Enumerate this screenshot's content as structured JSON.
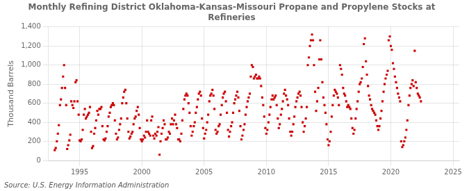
{
  "chart_data": {
    "type": "scatter",
    "title": "Monthly Refining District Oklahoma-Kansas-Missouri Propane and Propylene Stocks at\nRefineries",
    "ylabel": "Thousand Barrels",
    "source": "Source: U.S. Energy Information Administration",
    "color": "#cc0000",
    "marker": "square",
    "grid": true,
    "xlim": [
      1992.5,
      2025.5
    ],
    "xticks": [
      1995,
      2000,
      2005,
      2010,
      2015,
      2020,
      2025
    ],
    "ylim": [
      0,
      1400
    ],
    "yticks": [
      0,
      200,
      400,
      600,
      800,
      {
        "value": 1000,
        "label": "1,000"
      },
      {
        "value": 1200,
        "label": "1,200"
      },
      {
        "value": 1400,
        "label": "1,400"
      }
    ],
    "x": [
      1993.0,
      1993.08,
      1993.17,
      1993.25,
      1993.33,
      1993.42,
      1993.5,
      1993.58,
      1993.67,
      1993.75,
      1993.83,
      1993.92,
      1994.0,
      1994.08,
      1994.17,
      1994.25,
      1994.33,
      1994.42,
      1994.5,
      1994.58,
      1994.67,
      1994.75,
      1994.83,
      1994.92,
      1995.0,
      1995.08,
      1995.17,
      1995.25,
      1995.33,
      1995.42,
      1995.5,
      1995.58,
      1995.67,
      1995.75,
      1995.83,
      1995.92,
      1996.0,
      1996.08,
      1996.17,
      1996.25,
      1996.33,
      1996.42,
      1996.5,
      1996.58,
      1996.67,
      1996.75,
      1996.83,
      1996.92,
      1997.0,
      1997.08,
      1997.17,
      1997.25,
      1997.33,
      1997.42,
      1997.5,
      1997.58,
      1997.67,
      1997.75,
      1997.83,
      1997.92,
      1998.0,
      1998.08,
      1998.17,
      1998.25,
      1998.33,
      1998.42,
      1998.5,
      1998.58,
      1998.67,
      1998.75,
      1998.83,
      1998.92,
      1999.0,
      1999.08,
      1999.17,
      1999.25,
      1999.33,
      1999.42,
      1999.5,
      1999.58,
      1999.67,
      1999.75,
      1999.83,
      1999.92,
      2000.0,
      2000.08,
      2000.17,
      2000.25,
      2000.33,
      2000.42,
      2000.5,
      2000.58,
      2000.67,
      2000.75,
      2000.83,
      2000.92,
      2001.0,
      2001.08,
      2001.17,
      2001.25,
      2001.33,
      2001.42,
      2001.5,
      2001.58,
      2001.67,
      2001.75,
      2001.83,
      2001.92,
      2002.0,
      2002.08,
      2002.17,
      2002.25,
      2002.33,
      2002.42,
      2002.5,
      2002.58,
      2002.67,
      2002.75,
      2002.83,
      2002.92,
      2003.0,
      2003.08,
      2003.17,
      2003.25,
      2003.33,
      2003.42,
      2003.5,
      2003.58,
      2003.67,
      2003.75,
      2003.83,
      2003.92,
      2004.0,
      2004.08,
      2004.17,
      2004.25,
      2004.33,
      2004.42,
      2004.5,
      2004.58,
      2004.67,
      2004.75,
      2004.83,
      2004.92,
      2005.0,
      2005.08,
      2005.17,
      2005.25,
      2005.33,
      2005.42,
      2005.5,
      2005.58,
      2005.67,
      2005.75,
      2005.83,
      2005.92,
      2006.0,
      2006.08,
      2006.17,
      2006.25,
      2006.33,
      2006.42,
      2006.5,
      2006.58,
      2006.67,
      2006.75,
      2006.83,
      2006.92,
      2007.0,
      2007.08,
      2007.17,
      2007.25,
      2007.33,
      2007.42,
      2007.5,
      2007.58,
      2007.67,
      2007.75,
      2007.83,
      2007.92,
      2008.0,
      2008.08,
      2008.17,
      2008.25,
      2008.33,
      2008.42,
      2008.5,
      2008.58,
      2008.67,
      2008.75,
      2008.83,
      2008.92,
      2009.0,
      2009.08,
      2009.17,
      2009.25,
      2009.33,
      2009.42,
      2009.5,
      2009.58,
      2009.67,
      2009.75,
      2009.83,
      2009.92,
      2010.0,
      2010.08,
      2010.17,
      2010.25,
      2010.33,
      2010.42,
      2010.5,
      2010.58,
      2010.67,
      2010.75,
      2010.83,
      2010.92,
      2011.0,
      2011.08,
      2011.17,
      2011.25,
      2011.33,
      2011.42,
      2011.5,
      2011.58,
      2011.67,
      2011.75,
      2011.83,
      2011.92,
      2012.0,
      2012.08,
      2012.17,
      2012.25,
      2012.33,
      2012.42,
      2012.5,
      2012.58,
      2012.67,
      2012.75,
      2012.83,
      2012.92,
      2013.0,
      2013.08,
      2013.17,
      2013.25,
      2013.33,
      2013.42,
      2013.5,
      2013.58,
      2013.67,
      2013.75,
      2013.83,
      2013.92,
      2014.0,
      2014.08,
      2014.17,
      2014.25,
      2014.33,
      2014.42,
      2014.5,
      2014.58,
      2014.67,
      2014.75,
      2014.83,
      2014.92,
      2015.0,
      2015.08,
      2015.17,
      2015.25,
      2015.33,
      2015.42,
      2015.5,
      2015.58,
      2015.67,
      2015.75,
      2015.83,
      2015.92,
      2016.0,
      2016.08,
      2016.17,
      2016.25,
      2016.33,
      2016.42,
      2016.5,
      2016.58,
      2016.67,
      2016.75,
      2016.83,
      2016.92,
      2017.0,
      2017.08,
      2017.17,
      2017.25,
      2017.33,
      2017.42,
      2017.5,
      2017.58,
      2017.67,
      2017.75,
      2017.83,
      2017.92,
      2018.0,
      2018.08,
      2018.17,
      2018.25,
      2018.33,
      2018.42,
      2018.5,
      2018.58,
      2018.67,
      2018.75,
      2018.83,
      2018.92,
      2019.0,
      2019.08,
      2019.17,
      2019.25,
      2019.33,
      2019.42,
      2019.5,
      2019.58,
      2019.67,
      2019.75,
      2019.83,
      2019.92,
      2020.0,
      2020.08,
      2020.17,
      2020.25,
      2020.33,
      2020.42,
      2020.5,
      2020.58,
      2020.67,
      2020.75,
      2020.83,
      2020.92,
      2021.0,
      2021.08,
      2021.17,
      2021.25,
      2021.33,
      2021.42,
      2021.5,
      2021.58,
      2021.67,
      2021.75,
      2021.83,
      2021.92,
      2022.0,
      2022.08,
      2022.17,
      2022.25,
      2022.33,
      2022.42
    ],
    "values": [
      108,
      130,
      200,
      280,
      370,
      580,
      640,
      760,
      880,
      1000,
      760,
      580,
      120,
      160,
      210,
      270,
      620,
      580,
      550,
      620,
      820,
      840,
      620,
      480,
      210,
      200,
      220,
      320,
      480,
      540,
      440,
      460,
      480,
      500,
      560,
      300,
      130,
      150,
      280,
      340,
      420,
      520,
      480,
      540,
      540,
      560,
      360,
      220,
      210,
      230,
      300,
      360,
      460,
      500,
      560,
      580,
      600,
      580,
      420,
      280,
      220,
      240,
      320,
      380,
      440,
      600,
      660,
      720,
      740,
      600,
      440,
      300,
      230,
      250,
      280,
      300,
      380,
      440,
      460,
      520,
      560,
      480,
      340,
      220,
      200,
      220,
      260,
      240,
      300,
      420,
      300,
      280,
      260,
      420,
      460,
      260,
      230,
      280,
      260,
      300,
      350,
      60,
      200,
      280,
      340,
      420,
      380,
      220,
      220,
      240,
      300,
      280,
      380,
      440,
      380,
      420,
      480,
      380,
      340,
      220,
      220,
      200,
      280,
      420,
      540,
      640,
      680,
      700,
      680,
      600,
      500,
      360,
      260,
      300,
      360,
      400,
      500,
      560,
      640,
      700,
      720,
      680,
      440,
      340,
      230,
      280,
      320,
      400,
      480,
      620,
      680,
      700,
      740,
      680,
      540,
      320,
      280,
      300,
      360,
      380,
      480,
      580,
      660,
      700,
      720,
      620,
      500,
      320,
      250,
      300,
      360,
      400,
      500,
      600,
      640,
      680,
      720,
      660,
      520,
      360,
      220,
      260,
      320,
      380,
      480,
      560,
      620,
      660,
      700,
      880,
      1000,
      980,
      860,
      880,
      900,
      860,
      860,
      880,
      860,
      780,
      660,
      580,
      460,
      340,
      280,
      320,
      400,
      480,
      560,
      640,
      680,
      640,
      660,
      680,
      580,
      440,
      340,
      380,
      480,
      540,
      620,
      700,
      740,
      680,
      640,
      580,
      440,
      300,
      260,
      300,
      380,
      460,
      560,
      620,
      660,
      700,
      720,
      680,
      560,
      400,
      300,
      360,
      440,
      560,
      1000,
      1080,
      1200,
      1260,
      1320,
      1260,
      1000,
      720,
      520,
      620,
      760,
      1060,
      1260,
      1060,
      820,
      660,
      580,
      500,
      380,
      220,
      160,
      200,
      300,
      460,
      580,
      680,
      740,
      720,
      700,
      660,
      580,
      1000,
      960,
      900,
      760,
      700,
      680,
      620,
      560,
      580,
      560,
      540,
      440,
      340,
      280,
      320,
      440,
      540,
      620,
      720,
      800,
      820,
      860,
      980,
      1220,
      1280,
      1040,
      900,
      780,
      680,
      640,
      580,
      540,
      520,
      500,
      480,
      420,
      360,
      320,
      360,
      440,
      520,
      620,
      720,
      800,
      860,
      900,
      940,
      1260,
      1300,
      1200,
      1160,
      1020,
      960,
      880,
      820,
      760,
      700,
      660,
      620,
      200,
      140,
      160,
      200,
      240,
      320,
      420,
      580,
      680,
      760,
      800,
      840,
      780,
      1150,
      820,
      760,
      700,
      680,
      660,
      620
    ]
  }
}
